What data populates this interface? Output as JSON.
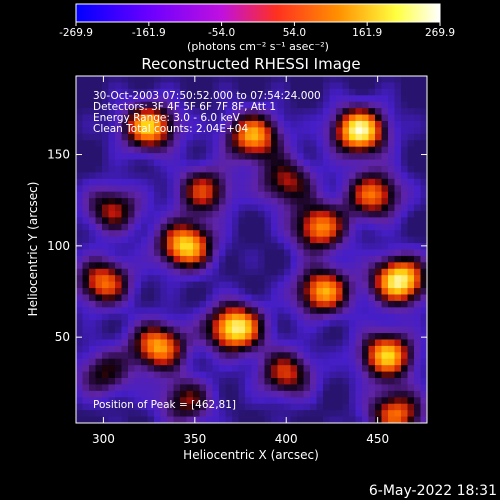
{
  "colorbar": {
    "ticks": [
      "-269.9",
      "-161.9",
      "-54.0",
      "54.0",
      "161.9",
      "269.9"
    ],
    "unit_label": "(photons cm⁻² s⁻¹ asec⁻²)",
    "range": [
      -269.9,
      269.9
    ],
    "colormap": [
      "#0000ff",
      "#6a00ff",
      "#c010e0",
      "#ff3020",
      "#ff9000",
      "#ffff40",
      "#ffffff"
    ]
  },
  "chart_data": {
    "type": "heatmap",
    "title": "Reconstructed RHESSI Image",
    "xlabel": "Heliocentric X (arcsec)",
    "ylabel": "Heliocentric Y (arcsec)",
    "xlim": [
      285,
      477
    ],
    "ylim": [
      3,
      193
    ],
    "xticks": [
      300,
      350,
      400,
      450
    ],
    "yticks": [
      50,
      100,
      150
    ],
    "peak": [
      462,
      81
    ],
    "annotations": [
      "30-Oct-2003 07:50:52.000 to 07:54:24.000",
      "Detectors: 3F 4F 5F 6F 7F 8F, Att 1",
      "Energy Range: 3.0 - 6.0 keV",
      "Clean     Total counts: 2.04E+04"
    ],
    "peak_label": "Position of Peak = [462,81]",
    "sources": [
      {
        "x": 440,
        "y": 163,
        "amp": 1.0
      },
      {
        "x": 382,
        "y": 160,
        "amp": 0.8
      },
      {
        "x": 325,
        "y": 165,
        "amp": 0.85
      },
      {
        "x": 448,
        "y": 128,
        "amp": 0.7
      },
      {
        "x": 400,
        "y": 135,
        "amp": 0.55
      },
      {
        "x": 355,
        "y": 130,
        "amp": 0.6
      },
      {
        "x": 305,
        "y": 120,
        "amp": 0.55
      },
      {
        "x": 418,
        "y": 110,
        "amp": 0.75
      },
      {
        "x": 345,
        "y": 100,
        "amp": 0.9
      },
      {
        "x": 462,
        "y": 81,
        "amp": 1.0
      },
      {
        "x": 420,
        "y": 75,
        "amp": 0.8
      },
      {
        "x": 300,
        "y": 80,
        "amp": 0.7
      },
      {
        "x": 372,
        "y": 55,
        "amp": 1.0
      },
      {
        "x": 330,
        "y": 45,
        "amp": 0.8
      },
      {
        "x": 455,
        "y": 40,
        "amp": 0.85
      },
      {
        "x": 400,
        "y": 30,
        "amp": 0.6
      },
      {
        "x": 345,
        "y": 15,
        "amp": 0.5
      },
      {
        "x": 460,
        "y": 8,
        "amp": 0.7
      },
      {
        "x": 300,
        "y": 30,
        "amp": 0.45
      }
    ]
  },
  "footer": {
    "timestamp": "6-May-2022 18:31"
  }
}
